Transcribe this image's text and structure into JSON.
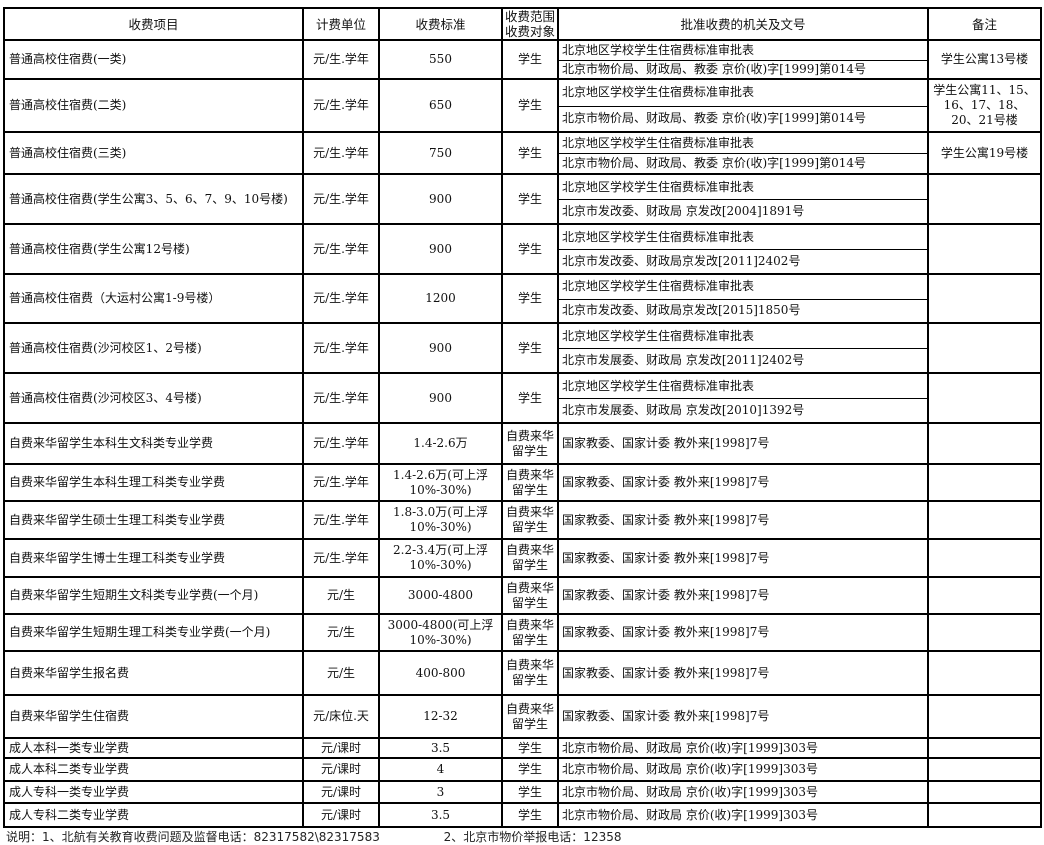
{
  "headers": {
    "item": "收费项目",
    "unit": "计费单位",
    "standard": "收费标准",
    "scope_line1": "收费范围",
    "scope_line2": "收费对象",
    "approval": "批准收费的机关及文号",
    "remark": "备注"
  },
  "rows": [
    {
      "item": "普通高校住宿费(一类)",
      "unit": "元/生.学年",
      "standard": "550",
      "scope": "学生",
      "approvals": [
        "北京地区学校学生住宿费标准审批表",
        "北京市物价局、财政局、教委 京价(收)字[1999]第014号"
      ],
      "remark": "学生公寓13号楼"
    },
    {
      "item": "普通高校住宿费(二类)",
      "unit": "元/生.学年",
      "standard": "650",
      "scope": "学生",
      "approvals": [
        "北京地区学校学生住宿费标准审批表",
        "北京市物价局、财政局、教委 京价(收)字[1999]第014号"
      ],
      "remark": "学生公寓11、15、16、17、18、20、21号楼"
    },
    {
      "item": "普通高校住宿费(三类)",
      "unit": "元/生.学年",
      "standard": "750",
      "scope": "学生",
      "approvals": [
        "北京地区学校学生住宿费标准审批表",
        "北京市物价局、财政局、教委 京价(收)字[1999]第014号"
      ],
      "remark": "学生公寓19号楼"
    },
    {
      "item": "普通高校住宿费(学生公寓3、5、6、7、9、10号楼)",
      "unit": "元/生.学年",
      "standard": "900",
      "scope": "学生",
      "approvals": [
        "北京地区学校学生住宿费标准审批表",
        "北京市发改委、财政局 京发改[2004]1891号"
      ],
      "remark": ""
    },
    {
      "item": "普通高校住宿费(学生公寓12号楼)",
      "unit": "元/生.学年",
      "standard": "900",
      "scope": "学生",
      "approvals": [
        "北京地区学校学生住宿费标准审批表",
        "北京市发改委、财政局京发改[2011]2402号"
      ],
      "remark": ""
    },
    {
      "item": "普通高校住宿费（大运村公寓1-9号楼）",
      "unit": "元/生.学年",
      "standard": "1200",
      "scope": "学生",
      "approvals": [
        "北京地区学校学生住宿费标准审批表",
        "北京市发改委、财政局京发改[2015]1850号"
      ],
      "remark": ""
    },
    {
      "item": "普通高校住宿费(沙河校区1、2号楼)",
      "unit": "元/生.学年",
      "standard": "900",
      "scope": "学生",
      "approvals": [
        "北京地区学校学生住宿费标准审批表",
        "北京市发展委、财政局 京发改[2011]2402号"
      ],
      "remark": ""
    },
    {
      "item": "普通高校住宿费(沙河校区3、4号楼)",
      "unit": "元/生.学年",
      "standard": "900",
      "scope": "学生",
      "approvals": [
        "北京地区学校学生住宿费标准审批表",
        "北京市发展委、财政局 京发改[2010]1392号"
      ],
      "remark": ""
    },
    {
      "item": "自费来华留学生本科生文科类专业学费",
      "unit": "元/生.学年",
      "standard": "1.4-2.6万",
      "scope": "自费来华留学生",
      "approvals": [
        "国家教委、国家计委 教外来[1998]7号"
      ],
      "remark": ""
    },
    {
      "item": "自费来华留学生本科生理工科类专业学费",
      "unit": "元/生.学年",
      "standard": "1.4-2.6万(可上浮10%-30%)",
      "scope": "自费来华留学生",
      "approvals": [
        "国家教委、国家计委 教外来[1998]7号"
      ],
      "remark": ""
    },
    {
      "item": "自费来华留学生硕士生理工科类专业学费",
      "unit": "元/生.学年",
      "standard": "1.8-3.0万(可上浮10%-30%)",
      "scope": "自费来华留学生",
      "approvals": [
        "国家教委、国家计委 教外来[1998]7号"
      ],
      "remark": ""
    },
    {
      "item": "自费来华留学生博士生理工科类专业学费",
      "unit": "元/生.学年",
      "standard": "2.2-3.4万(可上浮10%-30%)",
      "scope": "自费来华留学生",
      "approvals": [
        "国家教委、国家计委  教外来[1998]7号"
      ],
      "remark": ""
    },
    {
      "item": "自费来华留学生短期生文科类专业学费(一个月)",
      "unit": "元/生",
      "standard": "3000-4800",
      "scope": "自费来华留学生",
      "approvals": [
        "国家教委、国家计委  教外来[1998]7号"
      ],
      "remark": ""
    },
    {
      "item": "自费来华留学生短期生理工科类专业学费(一个月)",
      "unit": "元/生",
      "standard": "3000-4800(可上浮10%-30%)",
      "scope": "自费来华留学生",
      "approvals": [
        "国家教委、国家计委  教外来[1998]7号"
      ],
      "remark": ""
    },
    {
      "item": "自费来华留学生报名费",
      "unit": "元/生",
      "standard": "400-800",
      "scope": "自费来华留学生",
      "approvals": [
        "国家教委、国家计委  教外来[1998]7号"
      ],
      "remark": ""
    },
    {
      "item": "自费来华留学生住宿费",
      "unit": "元/床位.天",
      "standard": "12-32",
      "scope": "自费来华留学生",
      "approvals": [
        "国家教委、国家计委  教外来[1998]7号"
      ],
      "remark": ""
    },
    {
      "item": "成人本科一类专业学费",
      "unit": "元/课时",
      "standard": "3.5",
      "scope": "学生",
      "approvals": [
        "北京市物价局、财政局  京价(收)字[1999]303号"
      ],
      "remark": ""
    },
    {
      "item": "成人本科二类专业学费",
      "unit": "元/课时",
      "standard": "4",
      "scope": "学生",
      "approvals": [
        "北京市物价局、财政局  京价(收)字[1999]303号"
      ],
      "remark": ""
    },
    {
      "item": "成人专科一类专业学费",
      "unit": "元/课时",
      "standard": "3",
      "scope": "学生",
      "approvals": [
        "北京市物价局、财政局  京价(收)字[1999]303号"
      ],
      "remark": ""
    },
    {
      "item": "成人专科二类专业学费",
      "unit": "元/课时",
      "standard": "3.5",
      "scope": "学生",
      "approvals": [
        "北京市物价局、财政局  京价(收)字[1999]303号"
      ],
      "remark": ""
    }
  ],
  "footer": {
    "note1": "说明：1、北航有关教育收费问题及监督电话：82317582\\82317583",
    "note2": "2、北京市物价举报电话：12358"
  }
}
